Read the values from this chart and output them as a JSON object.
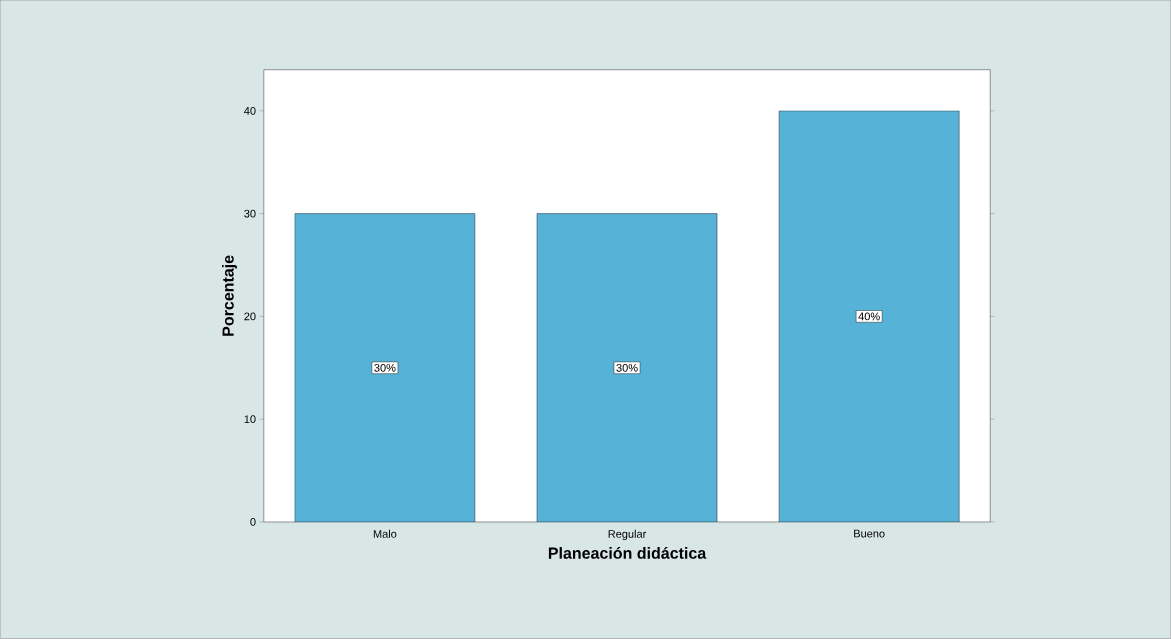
{
  "chart_data": {
    "type": "bar",
    "xlabel": "Planeación didáctica",
    "ylabel": "Porcentaje",
    "categories": [
      "Malo",
      "Regular",
      "Bueno"
    ],
    "values": [
      30,
      30,
      40
    ],
    "value_labels": [
      "30%",
      "30%",
      "40%"
    ],
    "color": "#56b2d6",
    "ylim": [
      0,
      44
    ],
    "yticks": [
      0,
      10,
      20,
      30,
      40
    ]
  }
}
